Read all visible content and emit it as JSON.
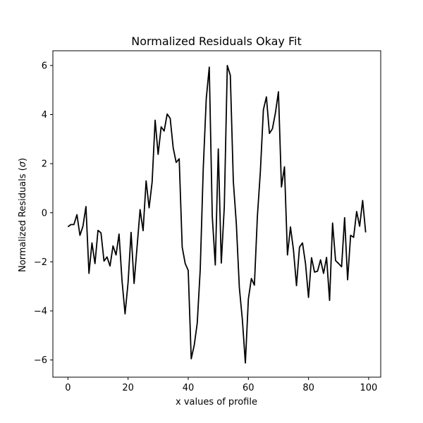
{
  "chart_data": {
    "type": "line",
    "title": "Normalized Residuals Okay Fit",
    "xlabel": "x values of profile",
    "ylabel_main": "Normalized Residuals (",
    "ylabel_symbol": "σ",
    "ylabel_end": ")",
    "xlim": [
      -5,
      104
    ],
    "ylim": [
      -6.7,
      6.6
    ],
    "xticks": [
      0,
      20,
      40,
      60,
      80,
      100
    ],
    "xtick_labels": [
      "0",
      "20",
      "40",
      "60",
      "80",
      "100"
    ],
    "yticks": [
      -6,
      -4,
      -2,
      0,
      2,
      4,
      6
    ],
    "ytick_labels": [
      "−6",
      "−4",
      "−2",
      "0",
      "2",
      "4",
      "6"
    ],
    "line_color": "#000000",
    "series": [
      {
        "x": [
          0,
          1,
          2,
          3,
          4,
          5,
          6,
          7,
          8,
          9,
          10,
          11,
          12,
          13,
          14,
          15,
          16,
          17,
          18,
          19,
          20,
          21,
          22,
          23,
          24,
          25,
          26,
          27,
          28,
          29,
          30,
          31,
          32,
          33,
          34,
          35,
          36,
          37,
          38,
          39,
          40,
          41,
          42,
          43,
          44,
          45,
          46,
          47,
          48,
          49,
          50,
          51,
          52,
          53,
          54,
          55,
          56,
          57,
          58,
          59,
          60,
          61,
          62,
          63,
          64,
          65,
          66,
          67,
          68,
          69,
          70,
          71,
          72,
          73,
          74,
          75,
          76,
          77,
          78,
          79,
          80,
          81,
          82,
          83,
          84,
          85,
          86,
          87,
          88,
          89,
          90,
          91,
          92,
          93,
          94,
          95,
          96,
          97,
          98,
          99
        ],
        "y": [
          -0.57,
          -0.48,
          -0.48,
          -0.08,
          -0.92,
          -0.55,
          0.25,
          -2.47,
          -1.23,
          -2.07,
          -0.72,
          -0.82,
          -1.97,
          -1.8,
          -2.17,
          -1.35,
          -1.72,
          -0.87,
          -2.78,
          -4.12,
          -2.85,
          -0.8,
          -2.88,
          -1.38,
          0.13,
          -0.73,
          1.3,
          0.2,
          1.25,
          3.77,
          2.38,
          3.5,
          3.33,
          4.02,
          3.85,
          2.65,
          2.05,
          2.2,
          -1.4,
          -2.07,
          -2.35,
          -5.95,
          -5.4,
          -4.5,
          -2.3,
          1.8,
          4.65,
          5.93,
          -0.15,
          -2.13,
          2.6,
          -2.05,
          0.25,
          6.0,
          5.6,
          1.28,
          -0.45,
          -3.05,
          -4.35,
          -6.12,
          -3.52,
          -2.68,
          -2.95,
          -0.15,
          1.7,
          4.2,
          4.72,
          3.23,
          3.42,
          4.07,
          4.93,
          1.05,
          1.87,
          -1.72,
          -0.58,
          -1.52,
          -2.97,
          -1.4,
          -1.23,
          -2.07,
          -3.45,
          -1.83,
          -2.42,
          -2.38,
          -1.92,
          -2.47,
          -1.82,
          -3.57,
          -0.42,
          -1.95,
          -2.07,
          -2.2,
          -0.2,
          -2.73,
          -0.92,
          -1.0,
          0.05,
          -0.55,
          0.5,
          -0.8
        ]
      }
    ]
  }
}
